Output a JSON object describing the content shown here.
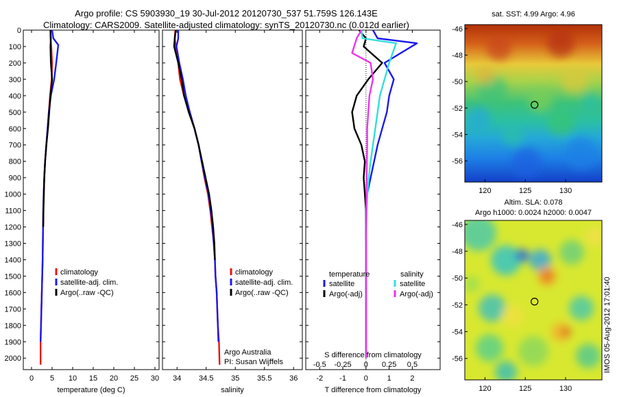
{
  "title_line1": "Argo profile: CS 5903930_19 30-Jul-2012 20120730_537 51.759S 126.143E",
  "title_line2": "Climatology: CARS2009. Satellite-adjusted climatology: synTS_20120730.nc (0.012d earlier)",
  "side_stamp": "IMOS 05-Aug-2012 17:01:40",
  "colors": {
    "climatology": "#ee1111",
    "satellite": "#1a1aee",
    "argo": "#000000",
    "satellite_s": "#33dddd",
    "argo_s": "#ee33ee"
  },
  "chart_data": [
    {
      "type": "line",
      "xlabel": "temperature (deg C)",
      "xlim": [
        -2,
        31
      ],
      "xticks": [
        0,
        5,
        10,
        15,
        20,
        25,
        30
      ],
      "ylim": [
        2070,
        0
      ],
      "yticks": [
        0,
        100,
        200,
        300,
        400,
        500,
        600,
        700,
        800,
        900,
        1000,
        1100,
        1200,
        1300,
        1400,
        1500,
        1600,
        1700,
        1800,
        1900,
        2000
      ],
      "legend_position": "center-left",
      "series": [
        {
          "name": "climatology",
          "color": "#ee1111",
          "x": [
            4.6,
            4.6,
            4.8,
            5.0,
            4.9,
            4.5,
            4.2,
            3.9,
            3.6,
            3.3,
            3.1,
            2.95,
            2.85,
            2.8,
            2.75,
            2.7,
            2.6,
            2.5,
            2.4,
            2.3,
            2.2,
            2.2
          ],
          "y": [
            0,
            50,
            100,
            200,
            300,
            400,
            500,
            600,
            700,
            800,
            900,
            1000,
            1100,
            1200,
            1300,
            1400,
            1500,
            1600,
            1700,
            1800,
            1900,
            2040
          ]
        },
        {
          "name": "satellite-adj. clim.",
          "color": "#1a1aee",
          "x": [
            5.0,
            5.3,
            6.5,
            6.0,
            5.5,
            4.7,
            4.2,
            3.9,
            3.6,
            3.3,
            3.1,
            2.95,
            2.85,
            2.8,
            2.75,
            2.7,
            2.6,
            2.5,
            2.4,
            2.3,
            2.2
          ],
          "y": [
            0,
            50,
            90,
            200,
            300,
            400,
            500,
            600,
            700,
            800,
            900,
            1000,
            1100,
            1200,
            1300,
            1400,
            1500,
            1600,
            1700,
            1800,
            1900
          ]
        },
        {
          "name": "Argo(..raw -QC)",
          "color": "#000000",
          "x": [
            4.6,
            4.7,
            4.6,
            4.7,
            5.0,
            4.6,
            4.3,
            4.0,
            3.6,
            3.3,
            3.1,
            3.0,
            2.9,
            2.85
          ],
          "y": [
            0,
            50,
            100,
            200,
            300,
            400,
            500,
            600,
            700,
            800,
            900,
            1000,
            1100,
            1200
          ]
        }
      ]
    },
    {
      "type": "line",
      "xlabel": "salinity",
      "xlim": [
        33.75,
        36.15
      ],
      "xticks": [
        34,
        34.5,
        35,
        35.5,
        36
      ],
      "ylim": [
        2070,
        0
      ],
      "legend_position": "center-left",
      "series": [
        {
          "name": "climatology",
          "color": "#ee1111",
          "x": [
            33.97,
            33.96,
            33.98,
            34.02,
            34.05,
            34.12,
            34.22,
            34.3,
            34.37,
            34.42,
            34.47,
            34.53,
            34.57,
            34.6,
            34.63,
            34.65,
            34.66,
            34.68,
            34.69,
            34.7,
            34.72,
            34.73
          ],
          "y": [
            0,
            50,
            100,
            200,
            300,
            400,
            500,
            600,
            700,
            800,
            900,
            1000,
            1100,
            1200,
            1300,
            1400,
            1500,
            1600,
            1700,
            1800,
            1900,
            2040
          ]
        },
        {
          "name": "satellite-adj. clim.",
          "color": "#1a1aee",
          "x": [
            34.02,
            34.02,
            33.99,
            34.04,
            34.1,
            34.15,
            34.22,
            34.3,
            34.37,
            34.42,
            34.48,
            34.54,
            34.58,
            34.61,
            34.63,
            34.65,
            34.66,
            34.68,
            34.69,
            34.7,
            34.71
          ],
          "y": [
            0,
            50,
            100,
            200,
            300,
            400,
            500,
            600,
            700,
            800,
            900,
            1000,
            1100,
            1200,
            1300,
            1400,
            1500,
            1600,
            1700,
            1800,
            1900
          ]
        },
        {
          "name": "Argo(..raw -QC)",
          "color": "#000000",
          "x": [
            33.98,
            33.96,
            33.95,
            34.02,
            34.08,
            34.12,
            34.2,
            34.3,
            34.37,
            34.43,
            34.49,
            34.55,
            34.59,
            34.62,
            34.64,
            34.65
          ],
          "y": [
            0,
            50,
            100,
            200,
            300,
            400,
            500,
            600,
            700,
            800,
            900,
            1000,
            1100,
            1200,
            1300,
            1400
          ]
        }
      ]
    },
    {
      "type": "line",
      "xlabel": "T difference from climatology",
      "xlabel_top": "S difference from climatology",
      "xlim": [
        -2.6,
        3.2
      ],
      "xticks": [
        -2,
        -1,
        0,
        1,
        2
      ],
      "xticks_top_values": [
        -0.5,
        -0.25,
        0,
        0.25,
        0.5
      ],
      "xticks_top_labels": [
        "-0.5",
        "-0.25",
        "0",
        "0.25",
        "0.5"
      ],
      "ylim": [
        2070,
        0
      ],
      "legend_position": "lower-center",
      "legend_groups": [
        "temperature",
        "salinity"
      ],
      "series": [
        {
          "name": "satellite",
          "group": "temperature",
          "color": "#1a1aee",
          "x": [
            0.3,
            0.5,
            2.2,
            0.8,
            1.2,
            1.0,
            0.9,
            0.7,
            0.5,
            0.35,
            0.2,
            0.05,
            0,
            0,
            0,
            0,
            0,
            0,
            0,
            0
          ],
          "y": [
            0,
            50,
            80,
            200,
            300,
            400,
            500,
            600,
            700,
            800,
            900,
            1000,
            1100,
            1200,
            1300,
            1400,
            1500,
            1600,
            1700,
            2000
          ]
        },
        {
          "name": "Argo(-adj)",
          "group": "temperature",
          "color": "#000000",
          "x": [
            -0.3,
            0,
            -0.1,
            0.7,
            0.1,
            -0.4,
            -0.6,
            -0.5,
            -0.2,
            -0.05,
            -0.1,
            -0.05,
            0,
            0,
            0
          ],
          "y": [
            0,
            50,
            100,
            200,
            300,
            400,
            500,
            600,
            700,
            800,
            900,
            1000,
            1100,
            1200,
            2000
          ]
        },
        {
          "name": "satellite",
          "group": "salinity",
          "color": "#33dddd",
          "x": [
            -0.2,
            -0.15,
            1.3,
            1.0,
            0.8,
            0.6,
            0.5,
            0.4,
            0.3,
            0.2,
            0.12,
            0.06,
            0.03,
            0.02,
            0,
            0,
            0
          ],
          "y": [
            0,
            50,
            80,
            200,
            300,
            400,
            500,
            600,
            700,
            800,
            900,
            1000,
            1100,
            1200,
            1300,
            1400,
            2000
          ]
        },
        {
          "name": "Argo(-adj)",
          "group": "salinity",
          "color": "#ee33ee",
          "x": [
            -0.2,
            -0.4,
            -0.6,
            0.2,
            0.3,
            0.15,
            0.1,
            0.05,
            0.05,
            0.04,
            0.03,
            0.02,
            0.01,
            0,
            0,
            0
          ],
          "y": [
            0,
            50,
            140,
            200,
            300,
            400,
            500,
            600,
            700,
            800,
            900,
            1000,
            1100,
            1200,
            1400,
            2000
          ]
        }
      ]
    },
    {
      "type": "heatmap",
      "title": "sat. SST: 4.99 Argo: 4.96",
      "xlim": [
        117.5,
        134.5
      ],
      "ylim": [
        -57.6,
        -45.7
      ],
      "xticks": [
        120,
        125,
        130
      ],
      "yticks": [
        -46,
        -48,
        -50,
        -52,
        -54,
        -56
      ],
      "marker": {
        "lon": 126.143,
        "lat": -51.759
      }
    },
    {
      "type": "heatmap",
      "title": "Altim. SLA: 0.078",
      "subtitle": "Argo h1000: 0.0024 h2000: 0.0047",
      "xlim": [
        117.5,
        134.5
      ],
      "ylim": [
        -57.6,
        -45.7
      ],
      "xticks": [
        120,
        125,
        130
      ],
      "yticks": [
        -46,
        -48,
        -50,
        -52,
        -54,
        -56
      ],
      "marker": {
        "lon": 126.143,
        "lat": -51.759
      }
    }
  ]
}
